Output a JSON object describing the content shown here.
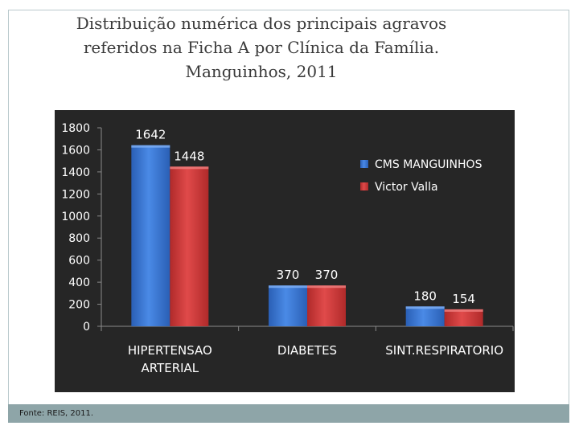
{
  "title": {
    "line1": "Distribuição numérica dos principais agravos",
    "line2": "referidos na Ficha A por Clínica da Família.",
    "line3": "Manguinhos, 2011"
  },
  "footer": {
    "source": "Fonte: REIS, 2011."
  },
  "colors": {
    "series1": "#3b78d8",
    "series2": "#d23c3c",
    "background": "#262626",
    "text": "#ffffff"
  },
  "chart_data": {
    "type": "bar",
    "categories": [
      [
        "HIPERTENSAO",
        "ARTERIAL"
      ],
      [
        "DIABETES"
      ],
      [
        "SINT.RESPIRATORIO"
      ]
    ],
    "series": [
      {
        "name": "CMS MANGUINHOS",
        "values": [
          1642,
          370,
          180
        ]
      },
      {
        "name": "Victor Valla",
        "values": [
          1448,
          370,
          154
        ]
      }
    ],
    "yticks": [
      0,
      200,
      400,
      600,
      800,
      1000,
      1200,
      1400,
      1600,
      1800
    ],
    "ylim": [
      0,
      1800
    ],
    "grid": false,
    "legend_position": "right"
  }
}
